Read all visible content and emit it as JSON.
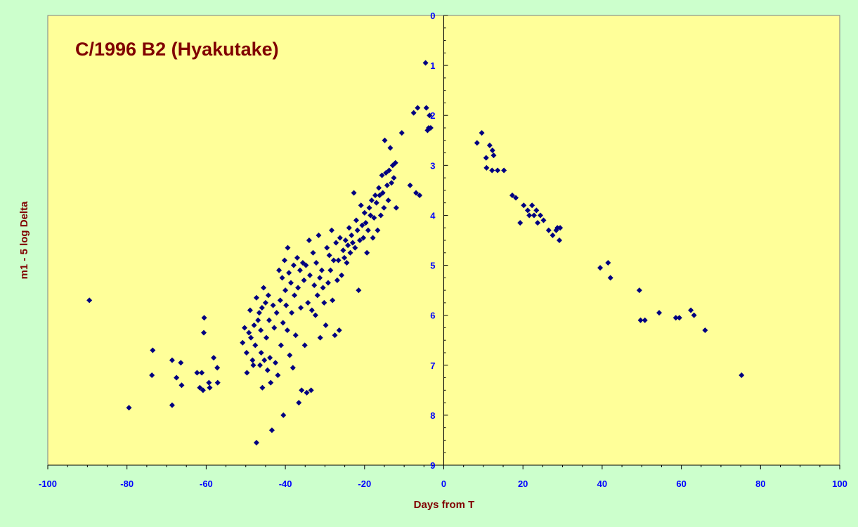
{
  "chart_data": {
    "type": "scatter",
    "title": "C/1996 B2 (Hyakutake)",
    "xlabel": "Days from T",
    "ylabel": "m1 - 5 log Delta",
    "xlim": [
      -100,
      100
    ],
    "ylim": [
      0,
      9
    ],
    "y_reversed": true,
    "x_ticks": [
      "-100",
      "-80",
      "-60",
      "-40",
      "-20",
      "0",
      "20",
      "40",
      "60",
      "80",
      "100"
    ],
    "y_ticks": [
      "0",
      "1",
      "2",
      "3",
      "4",
      "5",
      "6",
      "7",
      "8",
      "9"
    ],
    "grid": false,
    "legend": "none",
    "colors": {
      "background": "#ccffcc",
      "plot_area": "#ffff99",
      "marker": "#000080",
      "title": "#800000",
      "tick_labels": "#0000ff"
    },
    "series": [
      {
        "marker": "diamond",
        "points": [
          [
            -89.5,
            5.7
          ],
          [
            -79.5,
            7.85
          ],
          [
            -73.5,
            6.7
          ],
          [
            -73.7,
            7.2
          ],
          [
            -68.6,
            6.9
          ],
          [
            -68.6,
            7.8
          ],
          [
            -67.5,
            7.25
          ],
          [
            -66.4,
            6.95
          ],
          [
            -66.2,
            7.4
          ],
          [
            -62.3,
            7.15
          ],
          [
            -61.6,
            7.45
          ],
          [
            -61.1,
            7.15
          ],
          [
            -60.8,
            7.5
          ],
          [
            -60.5,
            6.05
          ],
          [
            -60.6,
            6.35
          ],
          [
            -59.3,
            7.35
          ],
          [
            -59.1,
            7.45
          ],
          [
            -58.1,
            6.85
          ],
          [
            -57.2,
            7.05
          ],
          [
            -57.1,
            7.35
          ],
          [
            -50.8,
            6.55
          ],
          [
            -50.3,
            6.25
          ],
          [
            -49.8,
            6.75
          ],
          [
            -49.7,
            7.15
          ],
          [
            -49.2,
            6.35
          ],
          [
            -48.9,
            5.9
          ],
          [
            -48.7,
            6.45
          ],
          [
            -48.3,
            6.9
          ],
          [
            -48.1,
            7.0
          ],
          [
            -47.9,
            6.2
          ],
          [
            -47.6,
            6.6
          ],
          [
            -47.3,
            5.65
          ],
          [
            -47.3,
            8.55
          ],
          [
            -46.9,
            6.1
          ],
          [
            -46.6,
            5.95
          ],
          [
            -46.4,
            7.0
          ],
          [
            -46.2,
            6.3
          ],
          [
            -46.1,
            6.75
          ],
          [
            -45.9,
            5.85
          ],
          [
            -45.8,
            7.45
          ],
          [
            -45.5,
            5.45
          ],
          [
            -45.3,
            6.9
          ],
          [
            -45.0,
            5.75
          ],
          [
            -44.8,
            6.45
          ],
          [
            -44.5,
            7.1
          ],
          [
            -44.3,
            5.6
          ],
          [
            -44.1,
            6.1
          ],
          [
            -43.9,
            6.85
          ],
          [
            -43.7,
            7.35
          ],
          [
            -43.4,
            8.3
          ],
          [
            -43.1,
            5.8
          ],
          [
            -42.8,
            6.25
          ],
          [
            -42.5,
            6.95
          ],
          [
            -42.2,
            5.95
          ],
          [
            -41.9,
            7.2
          ],
          [
            -41.6,
            5.1
          ],
          [
            -41.3,
            5.7
          ],
          [
            -41.1,
            6.6
          ],
          [
            -40.8,
            5.25
          ],
          [
            -40.6,
            6.15
          ],
          [
            -40.5,
            8.0
          ],
          [
            -40.2,
            4.9
          ],
          [
            -40.0,
            5.5
          ],
          [
            -39.8,
            5.8
          ],
          [
            -39.5,
            6.3
          ],
          [
            -39.4,
            4.65
          ],
          [
            -39.1,
            5.15
          ],
          [
            -38.9,
            6.8
          ],
          [
            -38.6,
            5.35
          ],
          [
            -38.4,
            5.95
          ],
          [
            -38.1,
            7.05
          ],
          [
            -37.9,
            5.0
          ],
          [
            -37.7,
            5.6
          ],
          [
            -37.4,
            6.4
          ],
          [
            -37.0,
            4.85
          ],
          [
            -36.8,
            5.45
          ],
          [
            -36.6,
            7.75
          ],
          [
            -36.3,
            5.1
          ],
          [
            -36.1,
            5.85
          ],
          [
            -35.9,
            7.5
          ],
          [
            -35.6,
            4.95
          ],
          [
            -35.3,
            5.3
          ],
          [
            -35.1,
            6.6
          ],
          [
            -34.8,
            5.0
          ],
          [
            -34.6,
            7.55
          ],
          [
            -34.3,
            5.75
          ],
          [
            -34.0,
            4.5
          ],
          [
            -33.8,
            5.2
          ],
          [
            -33.5,
            7.5
          ],
          [
            -33.3,
            5.9
          ],
          [
            -33.0,
            4.75
          ],
          [
            -32.7,
            5.4
          ],
          [
            -32.4,
            6.0
          ],
          [
            -32.2,
            4.95
          ],
          [
            -31.9,
            5.6
          ],
          [
            -31.6,
            4.4
          ],
          [
            -31.3,
            5.25
          ],
          [
            -31.2,
            6.45
          ],
          [
            -30.8,
            5.1
          ],
          [
            -30.5,
            5.45
          ],
          [
            -30.2,
            5.75
          ],
          [
            -29.8,
            6.2
          ],
          [
            -29.5,
            4.65
          ],
          [
            -29.2,
            5.35
          ],
          [
            -28.9,
            4.8
          ],
          [
            -28.6,
            5.1
          ],
          [
            -28.3,
            4.3
          ],
          [
            -28.1,
            5.7
          ],
          [
            -27.8,
            4.9
          ],
          [
            -27.5,
            6.4
          ],
          [
            -27.2,
            4.55
          ],
          [
            -26.9,
            5.3
          ],
          [
            -26.6,
            4.9
          ],
          [
            -26.4,
            6.3
          ],
          [
            -26.2,
            4.45
          ],
          [
            -25.8,
            5.2
          ],
          [
            -25.4,
            4.7
          ],
          [
            -25.1,
            4.85
          ],
          [
            -24.8,
            4.5
          ],
          [
            -24.5,
            4.95
          ],
          [
            -24.2,
            4.6
          ],
          [
            -23.9,
            4.25
          ],
          [
            -23.6,
            4.75
          ],
          [
            -23.3,
            4.4
          ],
          [
            -23.0,
            4.55
          ],
          [
            -22.7,
            3.55
          ],
          [
            -22.4,
            4.65
          ],
          [
            -22.1,
            4.1
          ],
          [
            -21.8,
            4.3
          ],
          [
            -21.5,
            5.5
          ],
          [
            -21.2,
            4.5
          ],
          [
            -20.9,
            3.8
          ],
          [
            -20.6,
            4.2
          ],
          [
            -20.3,
            4.45
          ],
          [
            -20.0,
            3.95
          ],
          [
            -19.7,
            4.15
          ],
          [
            -19.4,
            4.75
          ],
          [
            -19.1,
            4.3
          ],
          [
            -18.8,
            3.85
          ],
          [
            -18.5,
            4.0
          ],
          [
            -18.2,
            3.7
          ],
          [
            -17.9,
            4.45
          ],
          [
            -17.6,
            4.05
          ],
          [
            -17.3,
            3.6
          ],
          [
            -17.0,
            3.75
          ],
          [
            -16.7,
            4.3
          ],
          [
            -16.4,
            3.45
          ],
          [
            -16.2,
            3.6
          ],
          [
            -15.9,
            4.0
          ],
          [
            -15.6,
            3.2
          ],
          [
            -15.4,
            3.55
          ],
          [
            -15.1,
            3.85
          ],
          [
            -14.9,
            2.5
          ],
          [
            -14.6,
            3.15
          ],
          [
            -14.3,
            3.4
          ],
          [
            -14.0,
            3.7
          ],
          [
            -13.8,
            3.1
          ],
          [
            -13.5,
            2.65
          ],
          [
            -13.2,
            3.35
          ],
          [
            -12.9,
            3.0
          ],
          [
            -12.6,
            3.25
          ],
          [
            -12.2,
            2.95
          ],
          [
            -12.0,
            3.85
          ],
          [
            -10.6,
            2.35
          ],
          [
            -8.5,
            3.4
          ],
          [
            -7.6,
            1.95
          ],
          [
            -7.0,
            3.55
          ],
          [
            -6.6,
            1.85
          ],
          [
            -6.1,
            3.6
          ],
          [
            -4.6,
            0.95
          ],
          [
            -4.4,
            1.85
          ],
          [
            -4.1,
            2.3
          ],
          [
            -3.8,
            2.25
          ],
          [
            -3.6,
            2.0
          ],
          [
            -3.3,
            2.25
          ],
          [
            8.4,
            2.55
          ],
          [
            9.6,
            2.35
          ],
          [
            10.7,
            2.85
          ],
          [
            10.8,
            3.05
          ],
          [
            11.6,
            2.6
          ],
          [
            12.2,
            3.1
          ],
          [
            12.3,
            2.7
          ],
          [
            12.6,
            2.8
          ],
          [
            13.6,
            3.1
          ],
          [
            15.2,
            3.1
          ],
          [
            17.3,
            3.6
          ],
          [
            18.2,
            3.65
          ],
          [
            19.3,
            4.15
          ],
          [
            20.2,
            3.8
          ],
          [
            21.2,
            3.9
          ],
          [
            21.6,
            4.0
          ],
          [
            22.3,
            3.8
          ],
          [
            22.8,
            4.0
          ],
          [
            23.4,
            3.9
          ],
          [
            23.7,
            4.15
          ],
          [
            24.4,
            4.0
          ],
          [
            25.2,
            4.1
          ],
          [
            26.5,
            4.3
          ],
          [
            27.5,
            4.4
          ],
          [
            28.4,
            4.3
          ],
          [
            28.7,
            4.25
          ],
          [
            29.4,
            4.25
          ],
          [
            29.2,
            4.5
          ],
          [
            39.5,
            5.05
          ],
          [
            41.5,
            4.95
          ],
          [
            42.1,
            5.25
          ],
          [
            49.4,
            5.5
          ],
          [
            49.7,
            6.1
          ],
          [
            50.8,
            6.1
          ],
          [
            54.4,
            5.95
          ],
          [
            58.6,
            6.05
          ],
          [
            59.5,
            6.05
          ],
          [
            62.4,
            5.9
          ],
          [
            63.2,
            6.0
          ],
          [
            66.0,
            6.3
          ],
          [
            75.2,
            7.2
          ]
        ]
      }
    ]
  }
}
